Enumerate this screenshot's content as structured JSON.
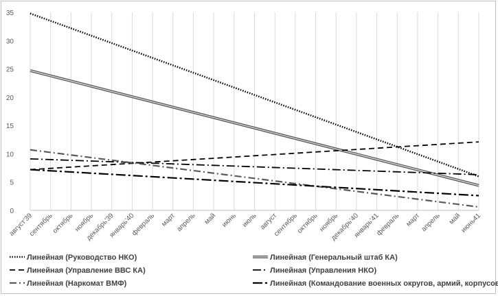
{
  "chart_data": {
    "type": "line",
    "title": "",
    "xlabel": "",
    "ylabel": "",
    "ylim": [
      0,
      35
    ],
    "yticks": [
      0,
      5,
      10,
      15,
      20,
      25,
      30,
      35
    ],
    "grid": "vertical",
    "legend_position": "bottom",
    "categories": [
      "август'39",
      "сентябрь",
      "октябрь",
      "ноябрь",
      "декабрь'39",
      "январь'40",
      "февраль",
      "март",
      "апрель",
      "май",
      "июнь",
      "июль",
      "август",
      "сентябрь",
      "октябрь",
      "ноябрь",
      "декабрь'40",
      "январь'41",
      "февраль",
      "март",
      "апрель",
      "май",
      "июнь41"
    ],
    "series": [
      {
        "name": "Линейная (Руководство НКО)",
        "style": "dotted",
        "start": 34.8,
        "end": 6.0
      },
      {
        "name": "Линейная (Генеральный штаб КА)",
        "style": "double",
        "start": 24.7,
        "end": 4.4
      },
      {
        "name": "Линейная (Управление ВВС КА)",
        "style": "dashed",
        "start": 7.2,
        "end": 12.1
      },
      {
        "name": "Линейная (Управления НКО)",
        "style": "dashdot",
        "start": 9.1,
        "end": 6.3
      },
      {
        "name": "Линейная (Наркомат ВМФ)",
        "style": "dashdot-gray",
        "start": 10.7,
        "end": 0.6
      },
      {
        "name": "Линейная (Командование военных округов, армий, корпусов)",
        "style": "longdash-dot",
        "start": 7.2,
        "end": 2.6
      }
    ]
  }
}
